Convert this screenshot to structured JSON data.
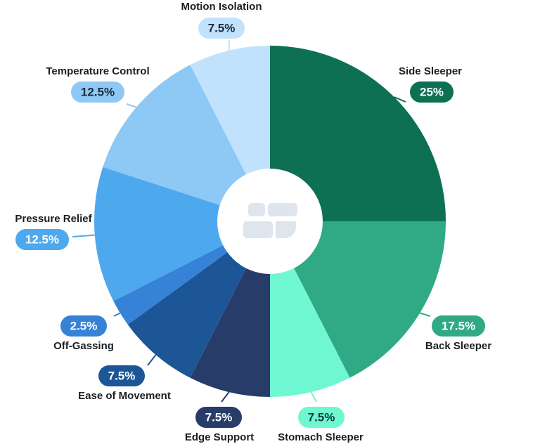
{
  "chart_data": {
    "type": "pie",
    "title": "",
    "slices": [
      {
        "label": "Side Sleeper",
        "value": 25,
        "display": "25%",
        "color": "#0e7052",
        "text_color": "#ffffff"
      },
      {
        "label": "Back Sleeper",
        "value": 17.5,
        "display": "17.5%",
        "color": "#2faa85",
        "text_color": "#ffffff"
      },
      {
        "label": "Stomach Sleeper",
        "value": 7.5,
        "display": "7.5%",
        "color": "#6ff7d1",
        "text_color": "#0e3d30"
      },
      {
        "label": "Edge Support",
        "value": 7.5,
        "display": "7.5%",
        "color": "#283c6a",
        "text_color": "#ffffff"
      },
      {
        "label": "Ease of Movement",
        "value": 7.5,
        "display": "7.5%",
        "color": "#1c5697",
        "text_color": "#ffffff"
      },
      {
        "label": "Off-Gassing",
        "value": 2.5,
        "display": "2.5%",
        "color": "#3682d7",
        "text_color": "#ffffff"
      },
      {
        "label": "Pressure Relief",
        "value": 12.5,
        "display": "12.5%",
        "color": "#4ea8ee",
        "text_color": "#ffffff"
      },
      {
        "label": "Temperature Control",
        "value": 12.5,
        "display": "12.5%",
        "color": "#8ec8f4",
        "text_color": "#1b2a3a"
      },
      {
        "label": "Motion Isolation",
        "value": 7.5,
        "display": "7.5%",
        "color": "#c1e2fd",
        "text_color": "#1b2a3a"
      }
    ],
    "center_icon": "mattress-layers-icon",
    "legend": "none"
  }
}
